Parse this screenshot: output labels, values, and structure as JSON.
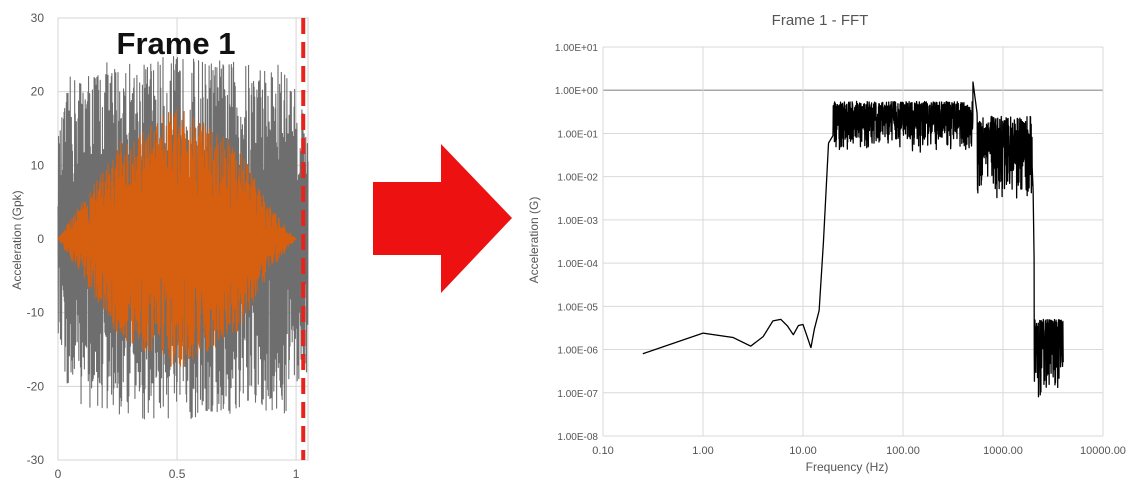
{
  "chart_data": [
    {
      "type": "line",
      "title": "Frame 1",
      "xlabel": "",
      "ylabel": "Acceleration (Gpk)",
      "xlim": [
        0,
        1.05
      ],
      "ylim": [
        -30,
        30
      ],
      "x_ticks": [
        "0",
        "0.5",
        "1"
      ],
      "y_ticks": [
        "30",
        "20",
        "10",
        "0",
        "-10",
        "-20",
        "-30"
      ],
      "grid": true,
      "marker_line": {
        "x": 1.03,
        "style": "dashed",
        "color": "#e8231c"
      },
      "series": [
        {
          "color": "#6e6e6e",
          "envelope": {
            "x": [
              0,
              0.05,
              0.2,
              0.5,
              0.8,
              0.95,
              1.0,
              1.05
            ],
            "amplitude": [
              14,
              22,
              24,
              25,
              24,
              24,
              20,
              18
            ]
          }
        },
        {
          "color": "#d65f10",
          "envelope": {
            "x": [
              0,
              0.1,
              0.25,
              0.5,
              0.75,
              0.9,
              1.0
            ],
            "amplitude": [
              0,
              5,
              13,
              18,
              13,
              4,
              0
            ]
          }
        }
      ]
    },
    {
      "type": "line",
      "title": "Frame 1 - FFT",
      "xlabel": "Frequency (Hz)",
      "ylabel": "Acceleration (G)",
      "xscale": "log",
      "yscale": "log",
      "xlim": [
        0.1,
        10000
      ],
      "ylim": [
        1e-08,
        10
      ],
      "x_ticks": [
        "0.10",
        "1.00",
        "10.00",
        "100.00",
        "1000.00",
        "10000.00"
      ],
      "y_ticks": [
        "1.00E+01",
        "1.00E+00",
        "1.00E-01",
        "1.00E-02",
        "1.00E-03",
        "1.00E-04",
        "1.00E-05",
        "1.00E-06",
        "1.00E-07",
        "1.00E-08"
      ],
      "grid": true,
      "series": [
        {
          "color": "#000000",
          "x": [
            0.25,
            1.0,
            2.0,
            3.0,
            4.0,
            5.0,
            6.0,
            7.0,
            8.0,
            9.0,
            10.0,
            11.0,
            12.0,
            13.0,
            14.5,
            16.0,
            18.0,
            20.0,
            25.0,
            30.0,
            40.0,
            50.0,
            100.0,
            200.0,
            300.0,
            400.0,
            500.0,
            550.0,
            600.0,
            1000.0,
            1500.0,
            1900.0,
            2000.0,
            2100.0,
            2500.0,
            3000.0,
            4000.0
          ],
          "y": [
            8e-07,
            2.4e-06,
            1.9e-06,
            1.2e-06,
            2e-06,
            4.6e-06,
            5e-06,
            3.5e-06,
            2.2e-06,
            3.6e-06,
            3.8e-06,
            2e-06,
            1.1e-06,
            3e-06,
            8e-06,
            0.0003,
            0.06,
            0.09,
            0.12,
            0.15,
            0.13,
            0.18,
            0.25,
            0.3,
            0.35,
            0.4,
            1.6,
            0.3,
            0.06,
            0.08,
            0.07,
            0.09,
            0.005,
            2e-06,
            2.8e-06,
            2.2e-06,
            1.8e-06
          ],
          "noise_bands": [
            {
              "x": [
                20,
                500
              ],
              "low": 0.035,
              "high": 0.55
            },
            {
              "x": [
                550,
                1950
              ],
              "low": 0.003,
              "high": 0.25
            },
            {
              "x": [
                2050,
                4200
              ],
              "low": 7e-08,
              "high": 5e-06
            }
          ]
        }
      ]
    }
  ],
  "arrow": {
    "color": "#ee1111",
    "icon": "right-arrow-icon"
  }
}
